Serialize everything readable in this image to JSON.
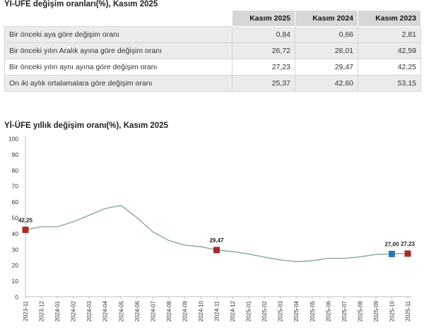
{
  "table": {
    "title": "Yİ-ÜFE değişim oranları(%), Kasım 2025",
    "headers": [
      "",
      "Kasım 2025",
      "Kasım 2024",
      "Kasım 2023"
    ],
    "rows": [
      {
        "label": "Bir önceki aya göre değişim oranı",
        "values": [
          "0,84",
          "0,66",
          "2,81"
        ]
      },
      {
        "label": "Bir önceki yılın Aralık ayına göre değişim oranı",
        "values": [
          "26,72",
          "28,01",
          "42,59"
        ]
      },
      {
        "label": "Bir önceki yılın aynı ayına göre değişim oranı",
        "values": [
          "27,23",
          "29,47",
          "42,25"
        ]
      },
      {
        "label": "On iki aylık ortalamalara göre değişim oranı",
        "values": [
          "25,37",
          "42,60",
          "53,15"
        ]
      }
    ]
  },
  "chart_data": {
    "type": "line",
    "title": "Yİ-ÜFE yıllık değişim oranı(%), Kasım 2025",
    "x": [
      "2023-11",
      "2023-12",
      "2024-01",
      "2024-02",
      "2024-03",
      "2024-04",
      "2024-05",
      "2024-06",
      "2024-07",
      "2024-08",
      "2024-09",
      "2024-10",
      "2024-11",
      "2024-12",
      "2025-01",
      "2025-02",
      "2025-03",
      "2025-04",
      "2025-05",
      "2025-06",
      "2025-07",
      "2025-08",
      "2025-09",
      "2025-10",
      "2025-11"
    ],
    "series": [
      {
        "values": [
          42.25,
          44.2,
          44.2,
          47.3,
          51.5,
          55.7,
          57.7,
          50.0,
          41.0,
          35.5,
          32.6,
          31.6,
          29.47,
          28.5,
          27.0,
          25.0,
          23.2,
          22.2,
          22.7,
          24.3,
          24.2,
          25.2,
          26.7,
          27.0,
          27.23
        ]
      }
    ],
    "ylim": [
      0,
      100
    ],
    "yticks": [
      0,
      10,
      20,
      30,
      40,
      50,
      60,
      70,
      80,
      90,
      100
    ],
    "grid": false,
    "line_color": "#7fa38f",
    "marker_color": "#a52a2a",
    "highlight_color": "#2e75b6",
    "annotations": [
      {
        "x": "2023-11",
        "label": "42,25",
        "marker": "red"
      },
      {
        "x": "2024-11",
        "label": "29,47",
        "marker": "red"
      },
      {
        "x": "2025-10",
        "label": "27,00",
        "marker": "blue"
      },
      {
        "x": "2025-11",
        "label": "27,23",
        "marker": "red"
      }
    ]
  }
}
